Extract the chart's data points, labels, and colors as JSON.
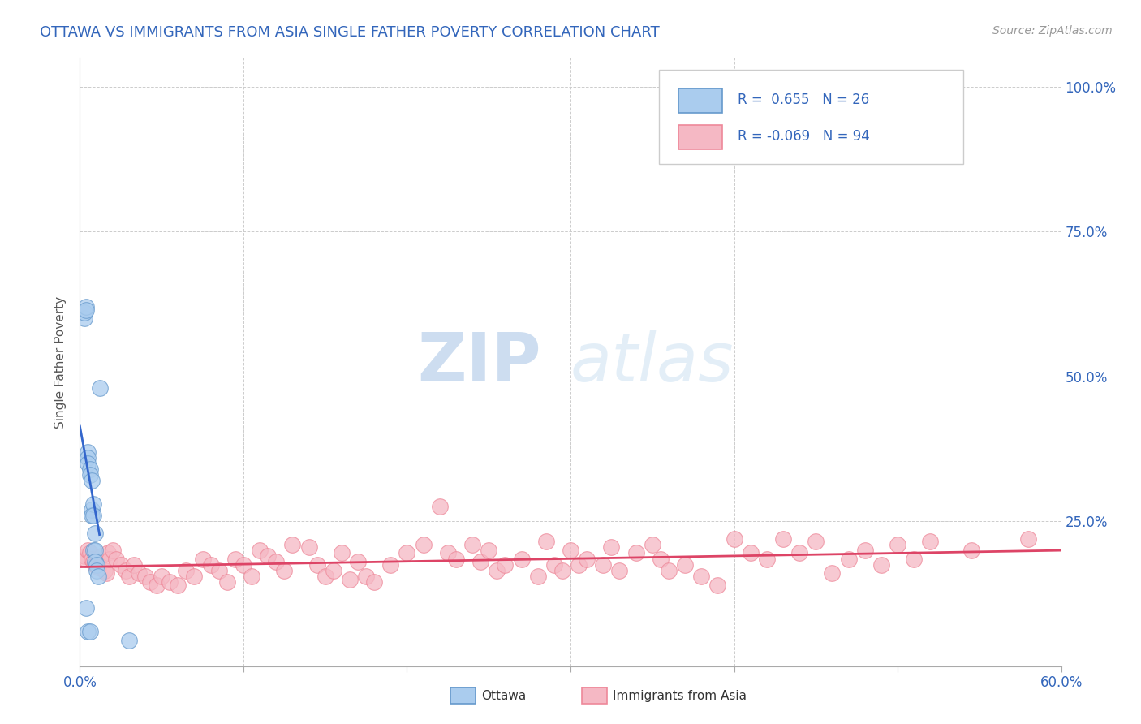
{
  "title": "OTTAWA VS IMMIGRANTS FROM ASIA SINGLE FATHER POVERTY CORRELATION CHART",
  "source_text": "Source: ZipAtlas.com",
  "ylabel": "Single Father Poverty",
  "xlim": [
    0.0,
    0.6
  ],
  "ylim": [
    0.0,
    1.05
  ],
  "xticks": [
    0.0,
    0.1,
    0.2,
    0.3,
    0.4,
    0.5,
    0.6
  ],
  "xticklabels": [
    "0.0%",
    "",
    "",
    "",
    "",
    "",
    "60.0%"
  ],
  "yticks": [
    0.0,
    0.25,
    0.5,
    0.75,
    1.0
  ],
  "yticklabels": [
    "",
    "25.0%",
    "50.0%",
    "75.0%",
    "100.0%"
  ],
  "background_color": "#ffffff",
  "grid_color": "#cccccc",
  "ottawa_color": "#6699cc",
  "ottawa_face_color": "#aaccee",
  "immigrants_color": "#ee8899",
  "immigrants_face_color": "#f5b8c4",
  "trend_ottawa_color": "#3366cc",
  "trend_immigrants_color": "#dd4466",
  "legend_R1": "0.655",
  "legend_N1": "26",
  "legend_R2": "-0.069",
  "legend_N2": "94",
  "watermark_ZIP": "ZIP",
  "watermark_atlas": "atlas",
  "ottawa_x": [
    0.003,
    0.003,
    0.004,
    0.004,
    0.004,
    0.005,
    0.005,
    0.005,
    0.005,
    0.006,
    0.006,
    0.006,
    0.007,
    0.007,
    0.007,
    0.008,
    0.008,
    0.008,
    0.009,
    0.009,
    0.009,
    0.01,
    0.01,
    0.011,
    0.012,
    0.03
  ],
  "ottawa_y": [
    0.6,
    0.61,
    0.62,
    0.615,
    0.1,
    0.37,
    0.36,
    0.35,
    0.06,
    0.34,
    0.33,
    0.06,
    0.32,
    0.27,
    0.26,
    0.28,
    0.26,
    0.2,
    0.23,
    0.2,
    0.18,
    0.175,
    0.165,
    0.155,
    0.48,
    0.045
  ],
  "immigrants_x": [
    0.003,
    0.004,
    0.005,
    0.006,
    0.007,
    0.008,
    0.009,
    0.01,
    0.011,
    0.013,
    0.015,
    0.016,
    0.017,
    0.018,
    0.02,
    0.022,
    0.025,
    0.028,
    0.03,
    0.033,
    0.036,
    0.04,
    0.043,
    0.047,
    0.05,
    0.055,
    0.06,
    0.065,
    0.07,
    0.075,
    0.08,
    0.085,
    0.09,
    0.095,
    0.1,
    0.105,
    0.11,
    0.115,
    0.12,
    0.125,
    0.13,
    0.14,
    0.145,
    0.15,
    0.155,
    0.16,
    0.165,
    0.17,
    0.175,
    0.18,
    0.19,
    0.2,
    0.21,
    0.22,
    0.225,
    0.23,
    0.24,
    0.245,
    0.25,
    0.255,
    0.26,
    0.27,
    0.28,
    0.285,
    0.29,
    0.295,
    0.3,
    0.305,
    0.31,
    0.32,
    0.325,
    0.33,
    0.34,
    0.35,
    0.355,
    0.36,
    0.37,
    0.38,
    0.39,
    0.4,
    0.41,
    0.42,
    0.43,
    0.44,
    0.45,
    0.46,
    0.47,
    0.48,
    0.49,
    0.5,
    0.51,
    0.52,
    0.545,
    0.58
  ],
  "immigrants_y": [
    0.19,
    0.185,
    0.2,
    0.195,
    0.185,
    0.18,
    0.175,
    0.175,
    0.17,
    0.19,
    0.165,
    0.16,
    0.195,
    0.185,
    0.2,
    0.185,
    0.175,
    0.165,
    0.155,
    0.175,
    0.16,
    0.155,
    0.145,
    0.14,
    0.155,
    0.145,
    0.14,
    0.165,
    0.155,
    0.185,
    0.175,
    0.165,
    0.145,
    0.185,
    0.175,
    0.155,
    0.2,
    0.19,
    0.18,
    0.165,
    0.21,
    0.205,
    0.175,
    0.155,
    0.165,
    0.195,
    0.15,
    0.18,
    0.155,
    0.145,
    0.175,
    0.195,
    0.21,
    0.275,
    0.195,
    0.185,
    0.21,
    0.18,
    0.2,
    0.165,
    0.175,
    0.185,
    0.155,
    0.215,
    0.175,
    0.165,
    0.2,
    0.175,
    0.185,
    0.175,
    0.205,
    0.165,
    0.195,
    0.21,
    0.185,
    0.165,
    0.175,
    0.155,
    0.14,
    0.22,
    0.195,
    0.185,
    0.22,
    0.195,
    0.215,
    0.16,
    0.185,
    0.2,
    0.175,
    0.21,
    0.185,
    0.215,
    0.2,
    0.22
  ]
}
